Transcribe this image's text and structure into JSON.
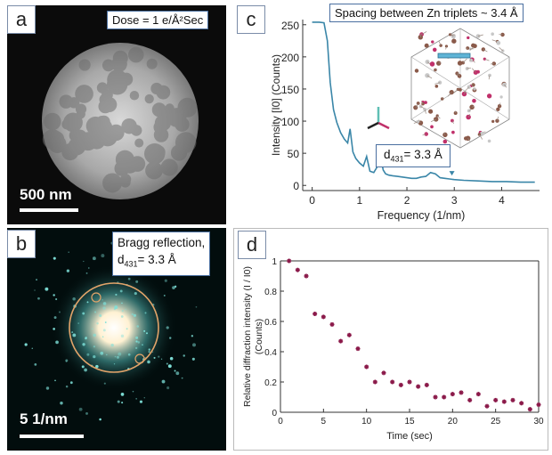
{
  "panels": {
    "a": {
      "letter": "a",
      "dose": "Dose = 1 e/Å²Sec",
      "scale": "500 nm"
    },
    "b": {
      "letter": "b",
      "bragg_line1": "Bragg reflection,",
      "bragg_d": "d",
      "bragg_sub": "431",
      "bragg_val": "= 3.3 Å",
      "scale": "5 1/nm"
    },
    "c": {
      "letter": "c",
      "spacing": "Spacing between Zn triplets ~ 3.4 Å",
      "d_label": "d",
      "d_sub": "431",
      "d_val": "= 3.3 Å"
    },
    "d": {
      "letter": "d"
    }
  },
  "chart_data": [
    {
      "type": "line",
      "panel": "c",
      "xlabel": "Frequency (1/nm)",
      "ylabel": "Intensity [I0] (Counts)",
      "xlim": [
        -0.2,
        4.8
      ],
      "ylim": [
        -8,
        258
      ],
      "xticks": [
        0,
        1,
        2,
        3,
        4
      ],
      "yticks": [
        0,
        50,
        100,
        150,
        200,
        250
      ],
      "color": "#3a86a8",
      "x": [
        0,
        0.15,
        0.25,
        0.32,
        0.38,
        0.45,
        0.52,
        0.6,
        0.68,
        0.75,
        0.8,
        0.86,
        0.92,
        1.0,
        1.08,
        1.15,
        1.22,
        1.3,
        1.38,
        1.45,
        1.5,
        1.55,
        1.62,
        1.7,
        1.8,
        1.9,
        2.0,
        2.1,
        2.2,
        2.3,
        2.4,
        2.5,
        2.6,
        2.7,
        2.8,
        2.9,
        3.0,
        3.2,
        3.5,
        3.8,
        4.1,
        4.4,
        4.7
      ],
      "y": [
        254,
        254,
        253,
        225,
        160,
        118,
        98,
        82,
        72,
        66,
        88,
        52,
        42,
        35,
        30,
        45,
        22,
        20,
        30,
        42,
        24,
        18,
        16,
        15,
        14,
        13,
        12,
        11,
        11,
        13,
        14,
        20,
        18,
        12,
        11,
        10,
        9,
        8,
        7,
        6,
        6,
        5,
        5
      ]
    },
    {
      "type": "scatter",
      "panel": "d",
      "xlabel": "Time (sec)",
      "ylabel": "Relative diffraction intensity (I / I0) (Counts)",
      "xlim": [
        0,
        30
      ],
      "ylim": [
        0,
        1
      ],
      "xticks": [
        0,
        5,
        10,
        15,
        20,
        25,
        30
      ],
      "yticks": [
        0,
        0.2,
        0.4,
        0.6,
        0.8,
        1
      ],
      "color": "#8b1a4a",
      "x": [
        1,
        2,
        3,
        4,
        5,
        6,
        7,
        8,
        9,
        10,
        11,
        12,
        13,
        14,
        15,
        16,
        17,
        18,
        19,
        20,
        21,
        22,
        23,
        24,
        25,
        26,
        27,
        28,
        29,
        30
      ],
      "y": [
        1.0,
        0.94,
        0.9,
        0.65,
        0.63,
        0.58,
        0.47,
        0.51,
        0.42,
        0.3,
        0.2,
        0.26,
        0.2,
        0.18,
        0.2,
        0.17,
        0.18,
        0.1,
        0.1,
        0.12,
        0.13,
        0.08,
        0.12,
        0.04,
        0.08,
        0.07,
        0.08,
        0.06,
        0.02,
        0.05
      ]
    }
  ]
}
